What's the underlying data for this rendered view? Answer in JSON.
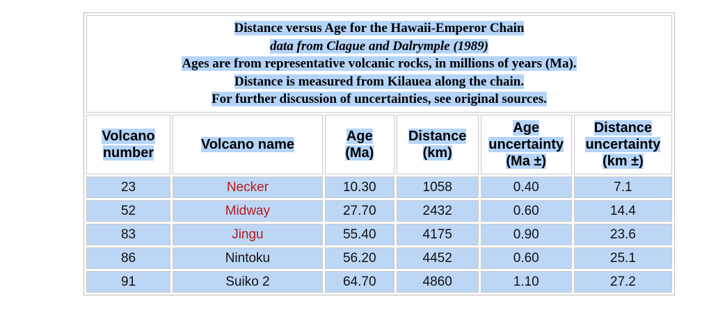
{
  "caption": {
    "title": "Distance versus Age for the Hawaii-Emperor Chain",
    "source": "data from Clague and Dalrymple (1989)",
    "notes": [
      "Ages are from representative volcanic rocks, in millions of years (Ma).",
      "Distance is measured from Kilauea along the chain.",
      "For further discussion of uncertainties, see original sources."
    ]
  },
  "table": {
    "headers": [
      [
        "Volcano",
        "number"
      ],
      [
        "Volcano name"
      ],
      [
        "Age",
        "(Ma)"
      ],
      [
        "Distance",
        "(km)"
      ],
      [
        "Age",
        "uncertainty",
        "(Ma ±)"
      ],
      [
        "Distance",
        "uncertainty",
        "(km ±)"
      ]
    ],
    "rows": [
      [
        "23",
        "Necker",
        "10.30",
        "1058",
        "0.40",
        "7.1"
      ],
      [
        "52",
        "Midway",
        "27.70",
        "2432",
        "0.60",
        "14.4"
      ],
      [
        "83",
        "Jingu",
        "55.40",
        "4175",
        "0.90",
        "23.6"
      ],
      [
        "86",
        "Nintoku",
        "56.20",
        "4452",
        "0.60",
        "25.1"
      ],
      [
        "91",
        "Suiko 2",
        "64.70",
        "4860",
        "1.10",
        "27.2"
      ]
    ]
  }
}
